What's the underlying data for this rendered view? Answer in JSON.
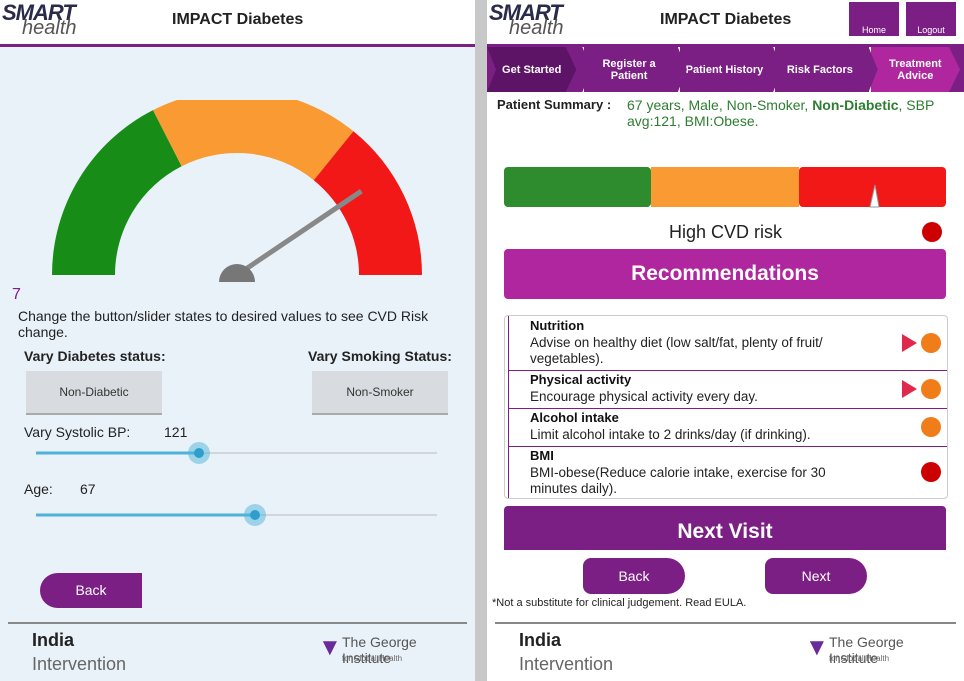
{
  "left": {
    "logo": {
      "top": "SMART",
      "bottom": "health"
    },
    "header": {
      "title": "IMPACT Diabetes"
    },
    "gauge_value": "7",
    "instruction": "Change the button/slider states to desired values to see CVD Risk change.",
    "diabetes": {
      "label": "Vary Diabetes status:",
      "button": "Non-Diabetic"
    },
    "smoking": {
      "label": "Vary Smoking Status:",
      "button": "Non-Smoker"
    },
    "sbp": {
      "label": "Vary Systolic BP:",
      "value": "121"
    },
    "age": {
      "label": "Age:",
      "value": "67"
    },
    "back": "Back",
    "footer": {
      "country": "India",
      "arm": "Intervention",
      "org": "The George Institute",
      "org_sub": "for Global Health"
    }
  },
  "right": {
    "logo": {
      "top": "SMART",
      "bottom": "health"
    },
    "header": {
      "title": "IMPACT Diabetes",
      "home": "Home",
      "logout": "Logout"
    },
    "steps": [
      "Get Started",
      "Register a Patient",
      "Patient History",
      "Risk Factors",
      "Treatment Advice"
    ],
    "summary": {
      "label": "Patient Summary :",
      "before": "67 years, Male, Non-Smoker, ",
      "bold": "Non-Diabetic",
      "after": ", SBP avg:121, BMI:Obese."
    },
    "risk_label": "High CVD risk",
    "recommendations": "Recommendations",
    "items": [
      {
        "title": "Nutrition",
        "text": "Advise on healthy diet (low salt/fat, plenty of fruit/ vegetables)."
      },
      {
        "title": "Physical activity",
        "text": "Encourage physical activity every day."
      },
      {
        "title": "Alcohol intake",
        "text": "Limit alcohol intake to 2 drinks/day (if drinking)."
      },
      {
        "title": "BMI",
        "text": "BMI-obese(Reduce calorie intake, exercise for 30 minutes daily)."
      }
    ],
    "next_visit": "Next Visit",
    "back": "Back",
    "next": "Next",
    "disclaimer": "*Not a substitute for clinical judgement. Read EULA.",
    "footer": {
      "country": "India",
      "arm": "Intervention",
      "org": "The George Institute",
      "org_sub": "for Global Health"
    }
  }
}
